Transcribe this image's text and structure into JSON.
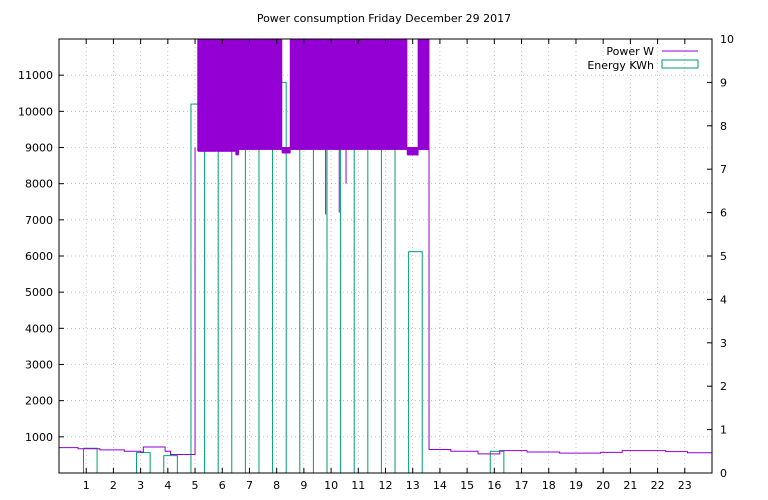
{
  "chart_data": {
    "type": "line",
    "title": "Power consumption Friday December 29 2017",
    "xlabel": "",
    "ylabel": "",
    "y2label": "",
    "xlim": [
      0,
      24
    ],
    "ylim": [
      0,
      12000
    ],
    "y2lim": [
      0,
      10
    ],
    "x_ticks": [
      "1",
      "2",
      "3",
      "4",
      "5",
      "6",
      "7",
      "8",
      "9",
      "10",
      "11",
      "12",
      "13",
      "14",
      "15",
      "16",
      "17",
      "18",
      "19",
      "20",
      "21",
      "22",
      "23"
    ],
    "y_ticks": [
      "1000",
      "2000",
      "3000",
      "4000",
      "5000",
      "6000",
      "7000",
      "8000",
      "9000",
      "10000",
      "11000"
    ],
    "y2_ticks": [
      "0",
      "1",
      "2",
      "3",
      "4",
      "5",
      "6",
      "7",
      "8",
      "9",
      "10"
    ],
    "grid": true,
    "legend_position": "top-right",
    "colors": {
      "power": "#9400d3",
      "energy": "#009e73"
    },
    "series": [
      {
        "name": "Power W",
        "type": "line",
        "axis": "y",
        "segments": [
          {
            "x": [
              0,
              0.7,
              0.7,
              1.5,
              1.5,
              2.4,
              2.4,
              3.0,
              3.0,
              3.1,
              3.1,
              3.9,
              3.9,
              4.1,
              4.1,
              5.0,
              5.0
            ],
            "y": [
              700,
              700,
              670,
              670,
              640,
              640,
              600,
              600,
              580,
              580,
              720,
              720,
              600,
              600,
              510,
              510,
              9000
            ]
          },
          {
            "x": [
              13.6,
              13.6,
              14.4,
              14.4,
              15.4,
              15.4,
              16.2,
              16.2,
              17.2,
              17.2,
              18.4,
              18.4,
              19.9,
              19.9,
              20.7,
              20.7,
              22.3,
              22.3,
              23.1,
              23.1,
              24
            ],
            "y": [
              9000,
              650,
              650,
              600,
              600,
              530,
              530,
              620,
              620,
              580,
              580,
              550,
              550,
              570,
              570,
              620,
              620,
              590,
              590,
              560,
              560
            ]
          }
        ],
        "bursts": [
          {
            "x0": 5.1,
            "x1": 5.8,
            "low": 8900,
            "high": 12000
          },
          {
            "x0": 5.8,
            "x1": 6.5,
            "low": 8900,
            "high": 12000
          },
          {
            "x0": 6.5,
            "x1": 6.6,
            "low": 8800,
            "high": 12000
          },
          {
            "x0": 6.6,
            "x1": 8.2,
            "low": 8950,
            "high": 12000
          },
          {
            "x0": 8.2,
            "x1": 8.5,
            "low": 8850,
            "high": 9000
          },
          {
            "x0": 8.5,
            "x1": 10.7,
            "low": 8950,
            "high": 12000
          },
          {
            "x0": 10.7,
            "x1": 12.8,
            "low": 8950,
            "high": 12000
          },
          {
            "x0": 12.8,
            "x1": 13.2,
            "low": 8800,
            "high": 9000
          },
          {
            "x0": 13.2,
            "x1": 13.6,
            "low": 8950,
            "high": 12000
          }
        ],
        "dips": [
          {
            "x": 9.8,
            "y": 7150
          },
          {
            "x": 10.3,
            "y": 7200
          },
          {
            "x": 10.55,
            "y": 8000
          }
        ]
      },
      {
        "name": "Energy KWh",
        "type": "bar",
        "axis": "y2",
        "bars": [
          {
            "x0": 0.9,
            "x1": 1.4,
            "value": 0.57
          },
          {
            "x0": 2.85,
            "x1": 3.35,
            "value": 0.47
          },
          {
            "x0": 3.85,
            "x1": 4.35,
            "value": 0.4
          },
          {
            "x0": 4.85,
            "x1": 5.35,
            "value": 8.5
          },
          {
            "x0": 5.85,
            "x1": 6.35,
            "value": 8.8
          },
          {
            "x0": 6.85,
            "x1": 7.35,
            "value": 9.0
          },
          {
            "x0": 7.85,
            "x1": 8.35,
            "value": 9.0
          },
          {
            "x0": 8.85,
            "x1": 9.35,
            "value": 8.9
          },
          {
            "x0": 9.85,
            "x1": 10.35,
            "value": 9.0
          },
          {
            "x0": 10.85,
            "x1": 11.35,
            "value": 9.1
          },
          {
            "x0": 11.85,
            "x1": 12.35,
            "value": 8.5
          },
          {
            "x0": 12.85,
            "x1": 13.35,
            "value": 5.1
          },
          {
            "x0": 15.85,
            "x1": 16.35,
            "value": 0.5
          }
        ]
      }
    ]
  }
}
